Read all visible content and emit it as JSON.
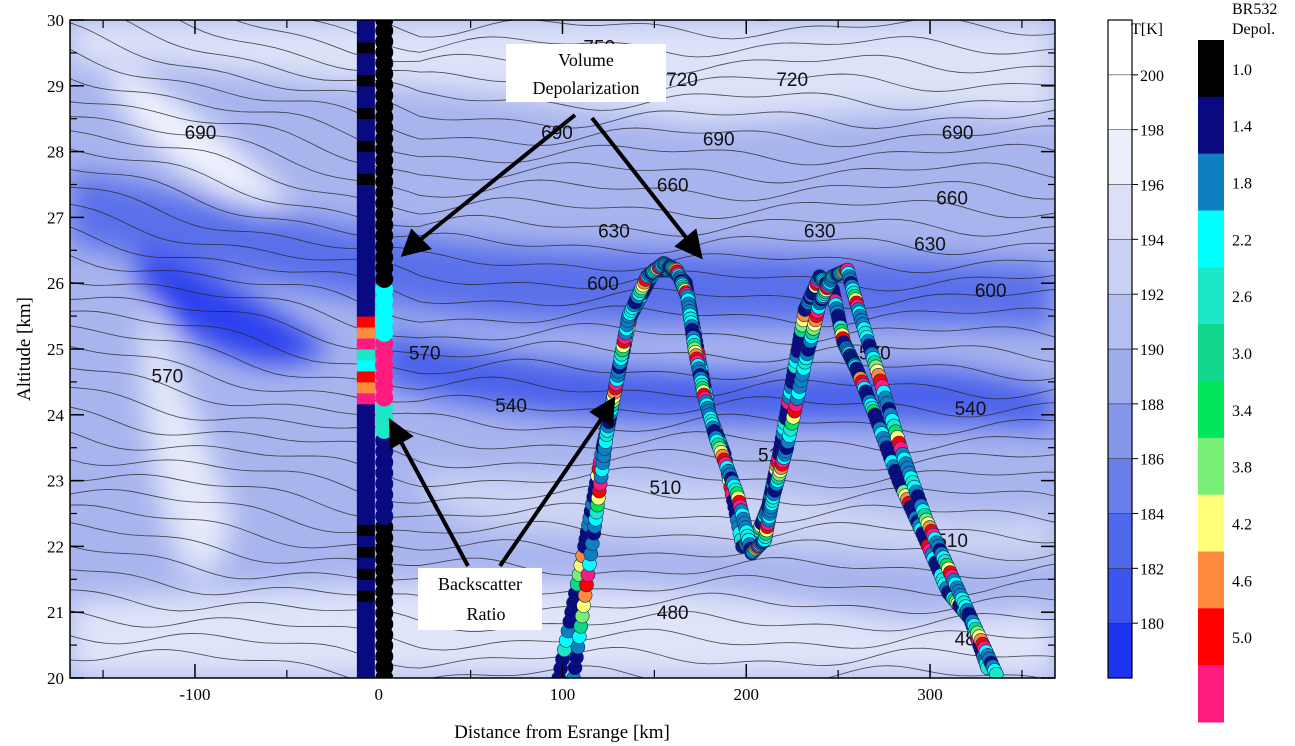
{
  "chart_data": {
    "type": "heatmap",
    "title": "",
    "xlabel": "Distance from Esrange [km]",
    "ylabel": "Altitude [km]",
    "xlim": [
      -168,
      368
    ],
    "ylim": [
      20,
      30
    ],
    "xticks": [
      -100,
      0,
      100,
      200,
      300
    ],
    "xtick_labels": [
      "-100",
      "0",
      "100",
      "200",
      "300"
    ],
    "yticks": [
      20,
      21,
      22,
      23,
      24,
      25,
      26,
      27,
      28,
      29,
      30
    ],
    "ytick_labels": [
      "20",
      "21",
      "22",
      "23",
      "24",
      "25",
      "26",
      "27",
      "28",
      "29",
      "30"
    ],
    "temperature_colorbar": {
      "title": "T[K]",
      "levels": [
        180,
        182,
        184,
        186,
        188,
        190,
        192,
        194,
        196,
        198,
        200
      ],
      "level_labels": [
        "180",
        "182",
        "184",
        "186",
        "188",
        "190",
        "192",
        "194",
        "196",
        "198",
        "200"
      ],
      "colors": [
        "#1e33f0",
        "#3b54f0",
        "#5068ec",
        "#6a7ee9",
        "#8496e8",
        "#9eaceb",
        "#b3bfef",
        "#c8d0f3",
        "#dbe0f7",
        "#eceffb",
        "#ffffff",
        "#ffffff"
      ]
    },
    "lidar_colorbar": {
      "title_line1": "BR532",
      "title_line2": "Depol.",
      "labels": [
        "1.0",
        "1.4",
        "1.8",
        "2.2",
        "2.6",
        "3.0",
        "3.4",
        "3.8",
        "4.2",
        "4.6",
        "5.0"
      ],
      "colors": [
        "#000000",
        "#0a0a80",
        "#0f7fbf",
        "#00ffff",
        "#1ee6c8",
        "#12d68c",
        "#00e65a",
        "#78f078",
        "#ffff78",
        "#ff8c3c",
        "#ff0000",
        "#ff1a80"
      ]
    },
    "contour_labels": [
      {
        "text": "750",
        "x": 120,
        "y": 29.6
      },
      {
        "text": "720",
        "x": 165,
        "y": 29.1
      },
      {
        "text": "720",
        "x": 225,
        "y": 29.1
      },
      {
        "text": "690",
        "x": -97,
        "y": 28.3
      },
      {
        "text": "690",
        "x": 97,
        "y": 28.3
      },
      {
        "text": "690",
        "x": 185,
        "y": 28.2
      },
      {
        "text": "690",
        "x": 315,
        "y": 28.3
      },
      {
        "text": "660",
        "x": 160,
        "y": 27.5
      },
      {
        "text": "660",
        "x": 312,
        "y": 27.3
      },
      {
        "text": "630",
        "x": 128,
        "y": 26.8
      },
      {
        "text": "630",
        "x": 240,
        "y": 26.8
      },
      {
        "text": "630",
        "x": 300,
        "y": 26.6
      },
      {
        "text": "600",
        "x": 122,
        "y": 26.0
      },
      {
        "text": "600",
        "x": 333,
        "y": 25.9
      },
      {
        "text": "570",
        "x": 25,
        "y": 24.95
      },
      {
        "text": "570",
        "x": 270,
        "y": 24.95
      },
      {
        "text": "570",
        "x": -115,
        "y": 24.6
      },
      {
        "text": "540",
        "x": 72,
        "y": 24.15
      },
      {
        "text": "540",
        "x": 322,
        "y": 24.1
      },
      {
        "text": "510",
        "x": 156,
        "y": 22.9
      },
      {
        "text": "510",
        "x": 215,
        "y": 23.4
      },
      {
        "text": "510",
        "x": 312,
        "y": 22.1
      },
      {
        "text": "480",
        "x": 160,
        "y": 21.0
      },
      {
        "text": "480",
        "x": 322,
        "y": 20.6
      }
    ],
    "annotations": [
      {
        "line1": "Volume",
        "line2": "Depolarization"
      },
      {
        "line1": "Backscatter",
        "line2": "Ratio"
      }
    ],
    "series": [
      {
        "quantity": "backscatter ratio (vertical profile)",
        "x": -7,
        "y_range": [
          20,
          30
        ]
      },
      {
        "quantity": "volume depolarization (vertical profile)",
        "x": 3,
        "y_range": [
          20,
          30
        ]
      },
      {
        "quantity": "backscatter ratio (aircraft track)",
        "x": [
          98,
          112,
          122,
          128,
          137,
          150,
          160,
          167,
          172,
          180,
          188,
          198,
          205,
          212,
          218,
          225,
          232,
          240,
          247,
          253,
          260,
          270,
          283,
          296,
          310,
          322,
          332
        ],
        "y": [
          20,
          22,
          23.5,
          24.3,
          25.5,
          26.2,
          26.2,
          26.0,
          25.2,
          24.0,
          23.4,
          22.0,
          22.1,
          22.6,
          23.4,
          24.5,
          25.6,
          26.1,
          25.9,
          25.1,
          24.7,
          24.0,
          23.0,
          22.2,
          21.3,
          20.9,
          20.1
        ]
      },
      {
        "quantity": "volume depolarization (aircraft track)",
        "x": [
          106,
          117,
          124,
          130,
          136,
          146,
          155,
          162,
          168,
          172,
          177,
          184,
          195,
          203,
          210,
          215,
          222,
          232,
          240,
          247,
          255,
          262,
          272,
          285,
          298,
          311,
          324,
          337
        ],
        "y": [
          20,
          22.2,
          23.7,
          24.6,
          25.5,
          26.1,
          26.3,
          26.2,
          25.8,
          25.0,
          24.3,
          23.6,
          22.8,
          21.9,
          22.1,
          22.8,
          23.5,
          24.8,
          25.7,
          26.1,
          26.2,
          25.5,
          24.6,
          23.4,
          22.4,
          21.6,
          20.8,
          20.0
        ]
      }
    ]
  }
}
